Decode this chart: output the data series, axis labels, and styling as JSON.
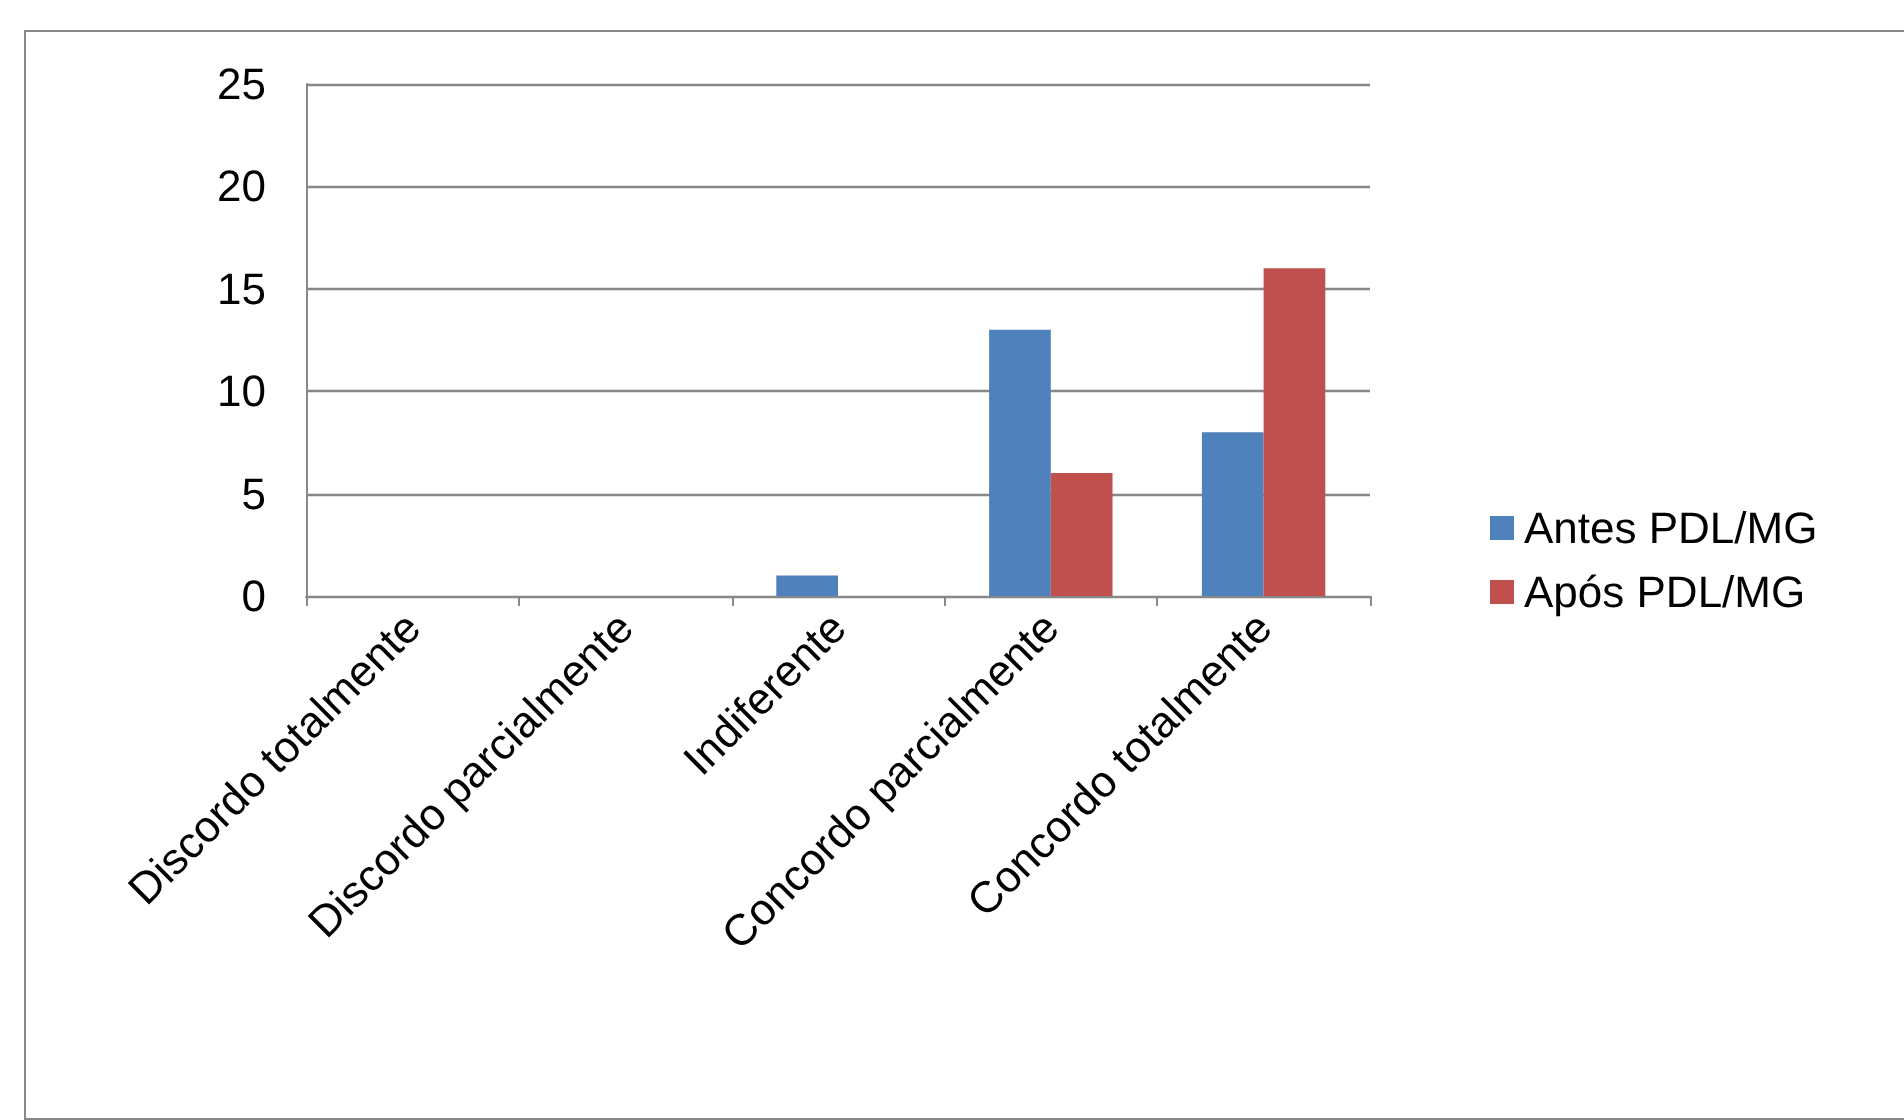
{
  "chart_data": {
    "type": "bar",
    "categories": [
      "Discordo totalmente",
      "Discordo parcialmente",
      "Indiferente",
      "Concordo parcialmente",
      "Concordo totalmente"
    ],
    "series": [
      {
        "name": "Antes PDL/MG",
        "color": "#4f81bd",
        "values": [
          0,
          0,
          1,
          13,
          8
        ]
      },
      {
        "name": "Após PDL/MG",
        "color": "#c0504d",
        "values": [
          0,
          0,
          0,
          6,
          16
        ]
      }
    ],
    "ylim": [
      0,
      25
    ],
    "yticks": [
      0,
      5,
      10,
      15,
      20,
      25
    ],
    "grid": "y",
    "legend": "right"
  }
}
